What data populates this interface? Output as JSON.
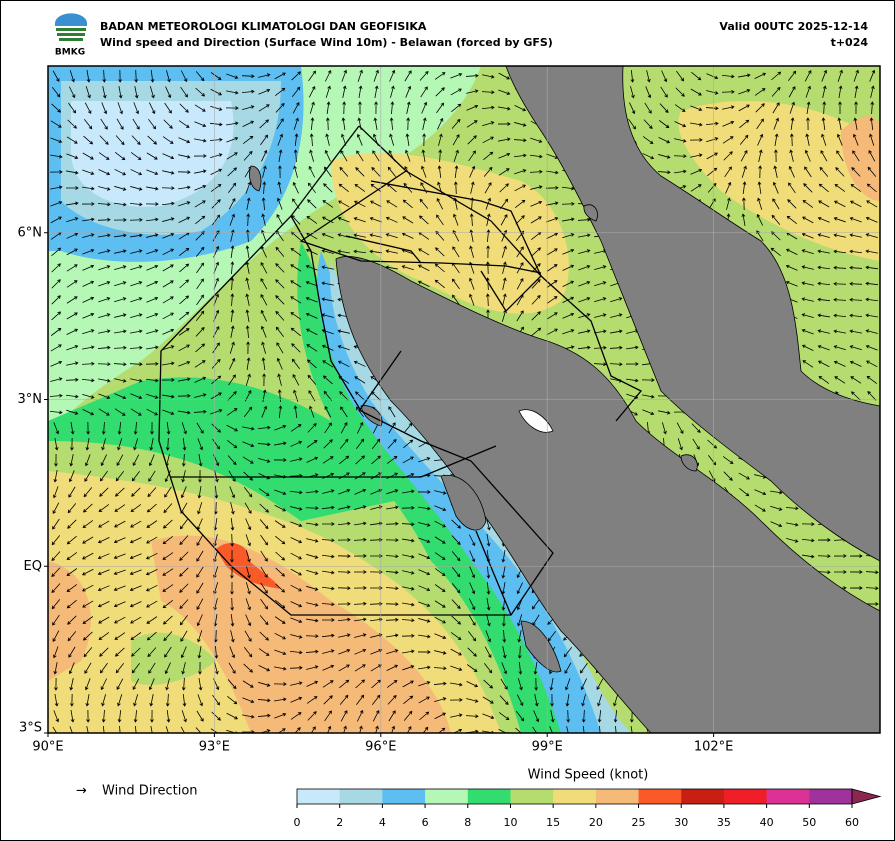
{
  "header": {
    "logo_text": "BMKG",
    "title_line1": "BADAN METEOROLOGI KLIMATOLOGI DAN GEOFISIKA",
    "title_line2": "Wind speed and Direction (Surface Wind 10m) - Belawan (forced by GFS)",
    "valid": "Valid 00UTC 2025-12-14",
    "lead": "t+024"
  },
  "map": {
    "xlim": [
      90,
      105
    ],
    "ylim": [
      -3,
      9
    ],
    "xticks": [
      {
        "value": 90,
        "label": "90°E"
      },
      {
        "value": 93,
        "label": "93°E"
      },
      {
        "value": 96,
        "label": "96°E"
      },
      {
        "value": 99,
        "label": "99°E"
      },
      {
        "value": 102,
        "label": "102°E"
      }
    ],
    "yticks": [
      {
        "value": 6,
        "label": "6°N"
      },
      {
        "value": 3,
        "label": "3°N"
      },
      {
        "value": 0,
        "label": "EQ"
      },
      {
        "value": -3,
        "label": "3°S"
      }
    ],
    "grid": true
  },
  "legend": {
    "wind_direction_symbol": "→",
    "wind_direction": "Wind Direction",
    "colorbar_title": "Wind Speed (knot)",
    "ticks": [
      0,
      2,
      4,
      6,
      8,
      10,
      15,
      20,
      25,
      30,
      35,
      40,
      50,
      60
    ],
    "colors": [
      "#c8e9fb",
      "#a6d9e3",
      "#5cbef1",
      "#b5f7b5",
      "#33dc6e",
      "#b5dc6e",
      "#f0dc78",
      "#f5b978",
      "#fa5a28",
      "#c81e14",
      "#f01e28",
      "#dc3296",
      "#a0329b"
    ],
    "extend_color": "#8c2850"
  }
}
